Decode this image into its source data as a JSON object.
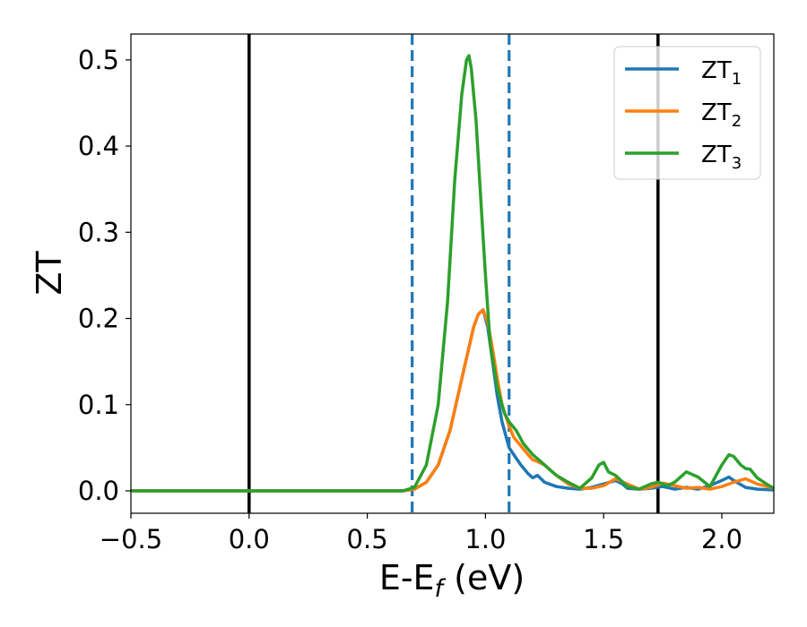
{
  "chart_data": {
    "type": "line",
    "title": "",
    "xlabel": "E-E",
    "xlabel_sub": "f",
    "xlabel_unit": " (eV)",
    "ylabel": "ZT",
    "xlim": [
      -0.5,
      2.22
    ],
    "ylim": [
      -0.026,
      0.53
    ],
    "xticks": [
      -0.5,
      0.0,
      0.5,
      1.0,
      1.5,
      2.0
    ],
    "xtick_labels": [
      "−0.5",
      "0.0",
      "0.5",
      "1.0",
      "1.5",
      "2.0"
    ],
    "yticks": [
      0.0,
      0.1,
      0.2,
      0.3,
      0.4,
      0.5
    ],
    "ytick_labels": [
      "0.0",
      "0.1",
      "0.2",
      "0.3",
      "0.4",
      "0.5"
    ],
    "grid": false,
    "legend_position": "top-right",
    "vlines": [
      {
        "x": 0.0,
        "style": "solid",
        "color": "#000000"
      },
      {
        "x": 1.73,
        "style": "solid",
        "color": "#000000"
      },
      {
        "x": 0.69,
        "style": "dashed",
        "color": "#1f77b4"
      },
      {
        "x": 1.1,
        "style": "dashed",
        "color": "#1f77b4"
      }
    ],
    "series": [
      {
        "name": "ZT",
        "name_sub": "1",
        "color": "#1f77b4",
        "x": [
          -0.5,
          0.5,
          0.65,
          0.7,
          0.75,
          0.8,
          0.85,
          0.9,
          0.95,
          0.97,
          0.99,
          1.01,
          1.03,
          1.05,
          1.07,
          1.1,
          1.12,
          1.15,
          1.18,
          1.2,
          1.22,
          1.25,
          1.3,
          1.35,
          1.4,
          1.45,
          1.5,
          1.55,
          1.58,
          1.6,
          1.65,
          1.7,
          1.75,
          1.8,
          1.85,
          1.9,
          1.95,
          2.0,
          2.03,
          2.05,
          2.1,
          2.15,
          2.22
        ],
        "y": [
          0.0,
          0.0,
          0.0,
          0.002,
          0.01,
          0.03,
          0.07,
          0.13,
          0.19,
          0.205,
          0.21,
          0.19,
          0.15,
          0.11,
          0.08,
          0.05,
          0.042,
          0.03,
          0.02,
          0.015,
          0.018,
          0.01,
          0.005,
          0.003,
          0.002,
          0.004,
          0.008,
          0.012,
          0.008,
          0.003,
          0.002,
          0.003,
          0.005,
          0.002,
          0.004,
          0.002,
          0.006,
          0.012,
          0.016,
          0.012,
          0.004,
          0.002,
          0.001
        ]
      },
      {
        "name": "ZT",
        "name_sub": "2",
        "color": "#ff7f0e",
        "x": [
          -0.5,
          0.5,
          0.65,
          0.7,
          0.75,
          0.8,
          0.85,
          0.9,
          0.95,
          0.97,
          0.99,
          1.01,
          1.03,
          1.05,
          1.07,
          1.1,
          1.12,
          1.15,
          1.18,
          1.2,
          1.22,
          1.25,
          1.3,
          1.35,
          1.4,
          1.45,
          1.5,
          1.55,
          1.6,
          1.65,
          1.7,
          1.75,
          1.8,
          1.85,
          1.9,
          1.95,
          2.0,
          2.05,
          2.1,
          2.15,
          2.22
        ],
        "y": [
          0.0,
          0.0,
          0.0,
          0.002,
          0.01,
          0.03,
          0.07,
          0.13,
          0.19,
          0.205,
          0.21,
          0.195,
          0.165,
          0.13,
          0.1,
          0.075,
          0.062,
          0.052,
          0.042,
          0.036,
          0.034,
          0.03,
          0.018,
          0.008,
          0.003,
          0.003,
          0.006,
          0.014,
          0.008,
          0.002,
          0.004,
          0.009,
          0.006,
          0.003,
          0.004,
          0.002,
          0.005,
          0.01,
          0.014,
          0.008,
          0.003
        ]
      },
      {
        "name": "ZT",
        "name_sub": "3",
        "color": "#2ca02c",
        "x": [
          -0.5,
          0.5,
          0.65,
          0.7,
          0.75,
          0.8,
          0.84,
          0.87,
          0.9,
          0.92,
          0.93,
          0.94,
          0.96,
          0.98,
          1.0,
          1.02,
          1.05,
          1.08,
          1.1,
          1.13,
          1.16,
          1.2,
          1.23,
          1.27,
          1.3,
          1.35,
          1.4,
          1.45,
          1.48,
          1.5,
          1.52,
          1.55,
          1.6,
          1.65,
          1.7,
          1.73,
          1.77,
          1.8,
          1.85,
          1.9,
          1.95,
          2.0,
          2.03,
          2.05,
          2.08,
          2.1,
          2.12,
          2.15,
          2.2,
          2.22
        ],
        "y": [
          0.0,
          0.0,
          0.0,
          0.004,
          0.03,
          0.1,
          0.22,
          0.36,
          0.46,
          0.5,
          0.505,
          0.49,
          0.43,
          0.34,
          0.25,
          0.17,
          0.12,
          0.09,
          0.08,
          0.07,
          0.055,
          0.042,
          0.035,
          0.025,
          0.018,
          0.01,
          0.003,
          0.015,
          0.03,
          0.033,
          0.022,
          0.018,
          0.005,
          0.002,
          0.008,
          0.01,
          0.006,
          0.01,
          0.022,
          0.016,
          0.005,
          0.03,
          0.042,
          0.04,
          0.03,
          0.026,
          0.025,
          0.015,
          0.006,
          0.003
        ]
      }
    ]
  }
}
